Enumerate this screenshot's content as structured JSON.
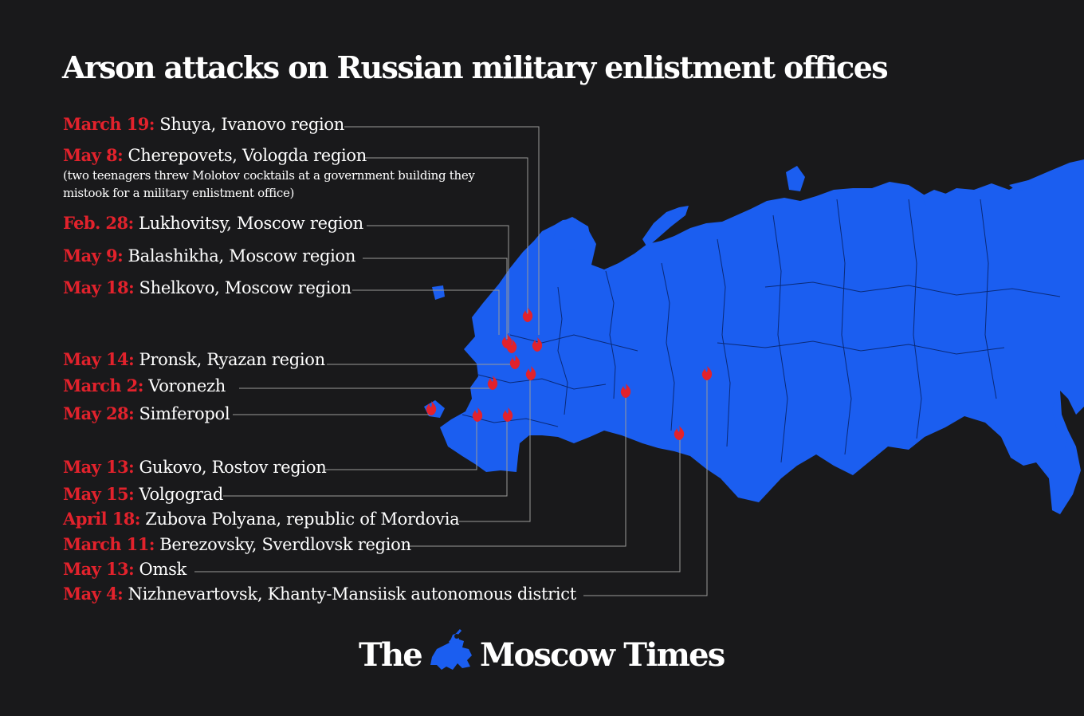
{
  "title": "Arson attacks on Russian military enlistment offices",
  "colors": {
    "background": "#19191b",
    "land": "#1b5ef0",
    "accent": "#e2222c",
    "text": "#ffffff",
    "leader_line": "#9a9a9a"
  },
  "marker_icon": "fire-icon",
  "events": [
    {
      "date": "March 19:",
      "place": "Shuya, Ivanovo region"
    },
    {
      "date": "May 8:",
      "place": "Cherepovets, Vologda region",
      "note": "(two teenagers threw Molotov cocktails at a government building they mistook for a military enlistment office)"
    },
    {
      "date": "Feb. 28:",
      "place": "Lukhovitsy, Moscow region"
    },
    {
      "date": "May 9:",
      "place": "Balashikha, Moscow region"
    },
    {
      "date": "May 18:",
      "place": "Shelkovo, Moscow region"
    },
    {
      "date": "May 14:",
      "place": "Pronsk, Ryazan region"
    },
    {
      "date": "March 2:",
      "place": "Voronezh"
    },
    {
      "date": "May 28:",
      "place": "Simferopol"
    },
    {
      "date": "May 13:",
      "place": "Gukovo, Rostov region"
    },
    {
      "date": "May 15:",
      "place": "Volgograd"
    },
    {
      "date": "April 18:",
      "place": "Zubova Polyana, republic of Mordovia"
    },
    {
      "date": "March 11:",
      "place": "Berezovsky, Sverdlovsk region"
    },
    {
      "date": "May 13:",
      "place": "Omsk"
    },
    {
      "date": "May 4:",
      "place": "Nizhnevartovsk, Khanty-Mansiisk autonomous district"
    }
  ],
  "logo": {
    "left": "The",
    "right": "Moscow Times",
    "emblem_icon": "st-george-emblem-icon"
  }
}
